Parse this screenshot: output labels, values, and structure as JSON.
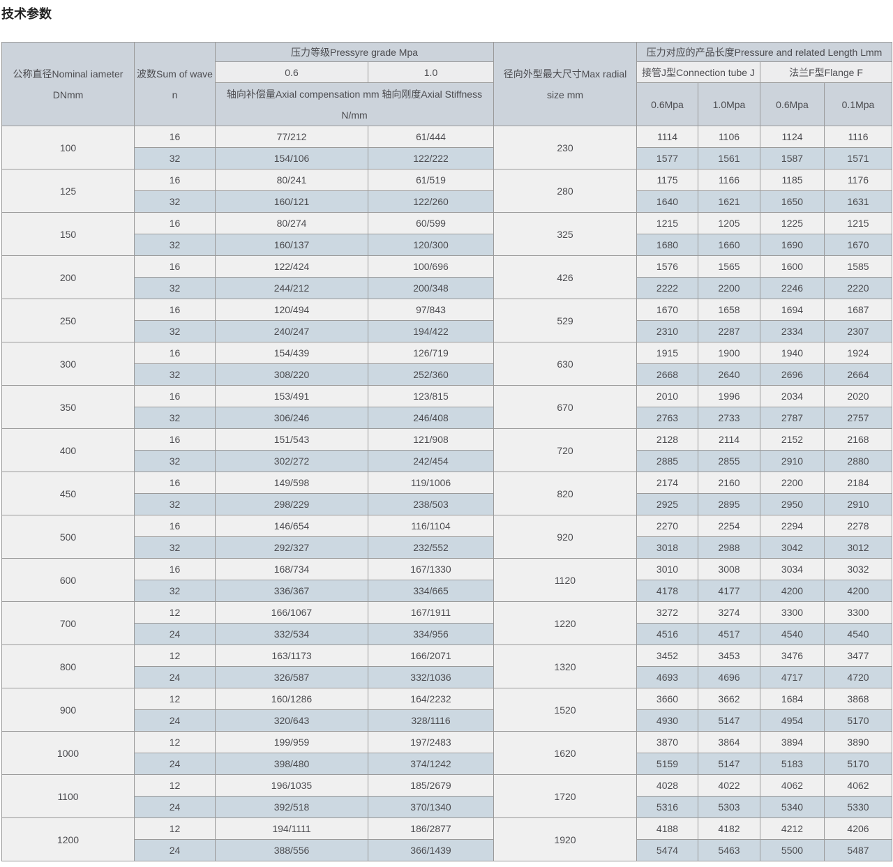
{
  "page": {
    "title": "技术参数"
  },
  "colors": {
    "header_blue": "#ccd3db",
    "header_light": "#ededee",
    "row_light": "#f0f0f0",
    "row_blue": "#ccd8e1",
    "border": "#9a9a9a",
    "text": "#4c4c50",
    "title_text": "#222222"
  },
  "table": {
    "header": {
      "dn": {
        "line1": "公称直径Nominal iameter",
        "line2": "DNmm"
      },
      "waves": {
        "line1": "波数Sum of wave",
        "line2": "n"
      },
      "pressure_group": "压力等级Pressyre grade Mpa",
      "pressure_cols": [
        "0.6",
        "1.0"
      ],
      "axial": {
        "line1": "轴向补偿量Axial compensation mm 轴向刚度Axial Stiffness",
        "line2": "N/mm"
      },
      "radial": {
        "line1": "径向外型最大尺寸Max radial",
        "line2": "size mm"
      },
      "length_group": "压力对应的产品长度Pressure and related Length Lmm",
      "tube_group": "接管J型Connection tube J",
      "flange_group": "法兰F型Flange F",
      "length_cols": [
        "0.6Mpa",
        "1.0Mpa",
        "0.6Mpa",
        "0.1Mpa"
      ]
    },
    "rows": [
      {
        "dn": "100",
        "radial": "230",
        "sub": [
          {
            "waves": "16",
            "axial_0_6": "77/212",
            "axial_1_0": "61/444",
            "lengths": [
              "1114",
              "1106",
              "1124",
              "1116"
            ]
          },
          {
            "waves": "32",
            "axial_0_6": "154/106",
            "axial_1_0": "122/222",
            "lengths": [
              "1577",
              "1561",
              "1587",
              "1571"
            ]
          }
        ]
      },
      {
        "dn": "125",
        "radial": "280",
        "sub": [
          {
            "waves": "16",
            "axial_0_6": "80/241",
            "axial_1_0": "61/519",
            "lengths": [
              "1175",
              "1166",
              "1185",
              "1176"
            ]
          },
          {
            "waves": "32",
            "axial_0_6": "160/121",
            "axial_1_0": "122/260",
            "lengths": [
              "1640",
              "1621",
              "1650",
              "1631"
            ]
          }
        ]
      },
      {
        "dn": "150",
        "radial": "325",
        "sub": [
          {
            "waves": "16",
            "axial_0_6": "80/274",
            "axial_1_0": "60/599",
            "lengths": [
              "1215",
              "1205",
              "1225",
              "1215"
            ]
          },
          {
            "waves": "32",
            "axial_0_6": "160/137",
            "axial_1_0": "120/300",
            "lengths": [
              "1680",
              "1660",
              "1690",
              "1670"
            ]
          }
        ]
      },
      {
        "dn": "200",
        "radial": "426",
        "sub": [
          {
            "waves": "16",
            "axial_0_6": "122/424",
            "axial_1_0": "100/696",
            "lengths": [
              "1576",
              "1565",
              "1600",
              "1585"
            ]
          },
          {
            "waves": "32",
            "axial_0_6": "244/212",
            "axial_1_0": "200/348",
            "lengths": [
              "2222",
              "2200",
              "2246",
              "2220"
            ]
          }
        ]
      },
      {
        "dn": "250",
        "radial": "529",
        "sub": [
          {
            "waves": "16",
            "axial_0_6": "120/494",
            "axial_1_0": "97/843",
            "lengths": [
              "1670",
              "1658",
              "1694",
              "1687"
            ]
          },
          {
            "waves": "32",
            "axial_0_6": "240/247",
            "axial_1_0": "194/422",
            "lengths": [
              "2310",
              "2287",
              "2334",
              "2307"
            ]
          }
        ]
      },
      {
        "dn": "300",
        "radial": "630",
        "sub": [
          {
            "waves": "16",
            "axial_0_6": "154/439",
            "axial_1_0": "126/719",
            "lengths": [
              "1915",
              "1900",
              "1940",
              "1924"
            ]
          },
          {
            "waves": "32",
            "axial_0_6": "308/220",
            "axial_1_0": "252/360",
            "lengths": [
              "2668",
              "2640",
              "2696",
              "2664"
            ]
          }
        ]
      },
      {
        "dn": "350",
        "radial": "670",
        "sub": [
          {
            "waves": "16",
            "axial_0_6": "153/491",
            "axial_1_0": "123/815",
            "lengths": [
              "2010",
              "1996",
              "2034",
              "2020"
            ]
          },
          {
            "waves": "32",
            "axial_0_6": "306/246",
            "axial_1_0": "246/408",
            "lengths": [
              "2763",
              "2733",
              "2787",
              "2757"
            ]
          }
        ]
      },
      {
        "dn": "400",
        "radial": "720",
        "sub": [
          {
            "waves": "16",
            "axial_0_6": "151/543",
            "axial_1_0": "121/908",
            "lengths": [
              "2128",
              "2114",
              "2152",
              "2168"
            ]
          },
          {
            "waves": "32",
            "axial_0_6": "302/272",
            "axial_1_0": "242/454",
            "lengths": [
              "2885",
              "2855",
              "2910",
              "2880"
            ]
          }
        ]
      },
      {
        "dn": "450",
        "radial": "820",
        "sub": [
          {
            "waves": "16",
            "axial_0_6": "149/598",
            "axial_1_0": "119/1006",
            "lengths": [
              "2174",
              "2160",
              "2200",
              "2184"
            ]
          },
          {
            "waves": "32",
            "axial_0_6": "298/229",
            "axial_1_0": "238/503",
            "lengths": [
              "2925",
              "2895",
              "2950",
              "2910"
            ]
          }
        ]
      },
      {
        "dn": "500",
        "radial": "920",
        "sub": [
          {
            "waves": "16",
            "axial_0_6": "146/654",
            "axial_1_0": "116/1104",
            "lengths": [
              "2270",
              "2254",
              "2294",
              "2278"
            ]
          },
          {
            "waves": "32",
            "axial_0_6": "292/327",
            "axial_1_0": "232/552",
            "lengths": [
              "3018",
              "2988",
              "3042",
              "3012"
            ]
          }
        ]
      },
      {
        "dn": "600",
        "radial": "1120",
        "sub": [
          {
            "waves": "16",
            "axial_0_6": "168/734",
            "axial_1_0": "167/1330",
            "lengths": [
              "3010",
              "3008",
              "3034",
              "3032"
            ]
          },
          {
            "waves": "32",
            "axial_0_6": "336/367",
            "axial_1_0": "334/665",
            "lengths": [
              "4178",
              "4177",
              "4200",
              "4200"
            ]
          }
        ]
      },
      {
        "dn": "700",
        "radial": "1220",
        "sub": [
          {
            "waves": "12",
            "axial_0_6": "166/1067",
            "axial_1_0": "167/1911",
            "lengths": [
              "3272",
              "3274",
              "3300",
              "3300"
            ]
          },
          {
            "waves": "24",
            "axial_0_6": "332/534",
            "axial_1_0": "334/956",
            "lengths": [
              "4516",
              "4517",
              "4540",
              "4540"
            ]
          }
        ]
      },
      {
        "dn": "800",
        "radial": "1320",
        "sub": [
          {
            "waves": "12",
            "axial_0_6": "163/1173",
            "axial_1_0": "166/2071",
            "lengths": [
              "3452",
              "3453",
              "3476",
              "3477"
            ]
          },
          {
            "waves": "24",
            "axial_0_6": "326/587",
            "axial_1_0": "332/1036",
            "lengths": [
              "4693",
              "4696",
              "4717",
              "4720"
            ]
          }
        ]
      },
      {
        "dn": "900",
        "radial": "1520",
        "sub": [
          {
            "waves": "12",
            "axial_0_6": "160/1286",
            "axial_1_0": "164/2232",
            "lengths": [
              "3660",
              "3662",
              "1684",
              "3868"
            ]
          },
          {
            "waves": "24",
            "axial_0_6": "320/643",
            "axial_1_0": "328/1116",
            "lengths": [
              "4930",
              "5147",
              "4954",
              "5170"
            ]
          }
        ]
      },
      {
        "dn": "1000",
        "radial": "1620",
        "sub": [
          {
            "waves": "12",
            "axial_0_6": "199/959",
            "axial_1_0": "197/2483",
            "lengths": [
              "3870",
              "3864",
              "3894",
              "3890"
            ]
          },
          {
            "waves": "24",
            "axial_0_6": "398/480",
            "axial_1_0": "374/1242",
            "lengths": [
              "5159",
              "5147",
              "5183",
              "5170"
            ]
          }
        ]
      },
      {
        "dn": "1100",
        "radial": "1720",
        "sub": [
          {
            "waves": "12",
            "axial_0_6": "196/1035",
            "axial_1_0": "185/2679",
            "lengths": [
              "4028",
              "4022",
              "4062",
              "4062"
            ]
          },
          {
            "waves": "24",
            "axial_0_6": "392/518",
            "axial_1_0": "370/1340",
            "lengths": [
              "5316",
              "5303",
              "5340",
              "5330"
            ]
          }
        ]
      },
      {
        "dn": "1200",
        "radial": "1920",
        "sub": [
          {
            "waves": "12",
            "axial_0_6": "194/1111",
            "axial_1_0": "186/2877",
            "lengths": [
              "4188",
              "4182",
              "4212",
              "4206"
            ]
          },
          {
            "waves": "24",
            "axial_0_6": "388/556",
            "axial_1_0": "366/1439",
            "lengths": [
              "5474",
              "5463",
              "5500",
              "5487"
            ]
          }
        ]
      }
    ]
  }
}
